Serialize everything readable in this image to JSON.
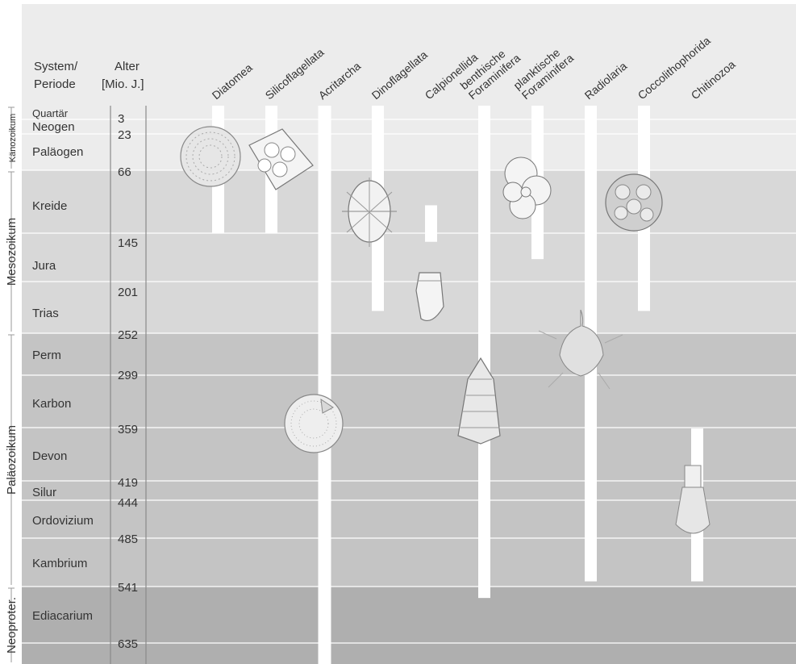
{
  "header": {
    "system_line1": "System/",
    "system_line2": "Periode",
    "age_line1": "Alter",
    "age_line2": "[Mio. J.]"
  },
  "eras": [
    {
      "id": "kaenozoikum",
      "label": "Känozoikum",
      "from": 0,
      "to": 66
    },
    {
      "id": "mesozoikum",
      "label": "Mesozoikum",
      "from": 66,
      "to": 252
    },
    {
      "id": "palaeozoikum",
      "label": "Paläozoikum",
      "from": 252,
      "to": 541
    },
    {
      "id": "neoproterozoikum",
      "label": "Neoproter.",
      "from": 541,
      "to": 700
    }
  ],
  "periods": [
    {
      "id": "quartaer",
      "label": "Quartär",
      "from": 0,
      "to": 3
    },
    {
      "id": "neogen",
      "label": "Neogen",
      "from": 3,
      "to": 23
    },
    {
      "id": "palaeogen",
      "label": "Paläogen",
      "from": 23,
      "to": 66
    },
    {
      "id": "kreide",
      "label": "Kreide",
      "from": 66,
      "to": 145
    },
    {
      "id": "jura",
      "label": "Jura",
      "from": 145,
      "to": 201
    },
    {
      "id": "trias",
      "label": "Trias",
      "from": 201,
      "to": 252
    },
    {
      "id": "perm",
      "label": "Perm",
      "from": 252,
      "to": 299
    },
    {
      "id": "karbon",
      "label": "Karbon",
      "from": 299,
      "to": 359
    },
    {
      "id": "devon",
      "label": "Devon",
      "from": 359,
      "to": 419
    },
    {
      "id": "silur",
      "label": "Silur",
      "from": 419,
      "to": 444
    },
    {
      "id": "ordovizium",
      "label": "Ordovizium",
      "from": 444,
      "to": 485
    },
    {
      "id": "kambrium",
      "label": "Kambrium",
      "from": 485,
      "to": 541
    },
    {
      "id": "ediacarium",
      "label": "Ediacarium",
      "from": 541,
      "to": 635
    }
  ],
  "ages": [
    "3",
    "23",
    "66",
    "145",
    "201",
    "252",
    "299",
    "359",
    "419",
    "444",
    "485",
    "541",
    "635"
  ],
  "groups": [
    {
      "id": "diatomea",
      "label": "Diatomea",
      "from": 0,
      "to": 145
    },
    {
      "id": "silicoflagellata",
      "label": "Silicoflagellata",
      "from": 0,
      "to": 145
    },
    {
      "id": "acritarcha",
      "label": "Acritarcha",
      "from": 0,
      "to": 700
    },
    {
      "id": "dinoflagellata",
      "label": "Dinoflagellata",
      "from": 0,
      "to": 230
    },
    {
      "id": "calpionellida",
      "label": "Calpionellida",
      "from": 110,
      "to": 155
    },
    {
      "id": "benthische-foraminifera",
      "label": "benthische\nForaminifera",
      "from": 0,
      "to": 560
    },
    {
      "id": "planktische-foraminifera",
      "label": "planktische\nForaminifera",
      "from": 0,
      "to": 175
    },
    {
      "id": "radiolaria",
      "label": "Radiolaria",
      "from": 0,
      "to": 535
    },
    {
      "id": "coccolithophorida",
      "label": "Coccolithophorida",
      "from": 0,
      "to": 230
    },
    {
      "id": "chitinozoa",
      "label": "Chitinozoa",
      "from": 360,
      "to": 535
    }
  ],
  "colors": {
    "background": "#ffffff",
    "header": "#ececec",
    "kaenozoikum": "#ececec",
    "mesozoikum": "#d8d8d8",
    "palaeozoikum": "#c4c4c4",
    "neoproterozoikum": "#afafaf",
    "bar": "#ffffff",
    "text": "#333333"
  }
}
